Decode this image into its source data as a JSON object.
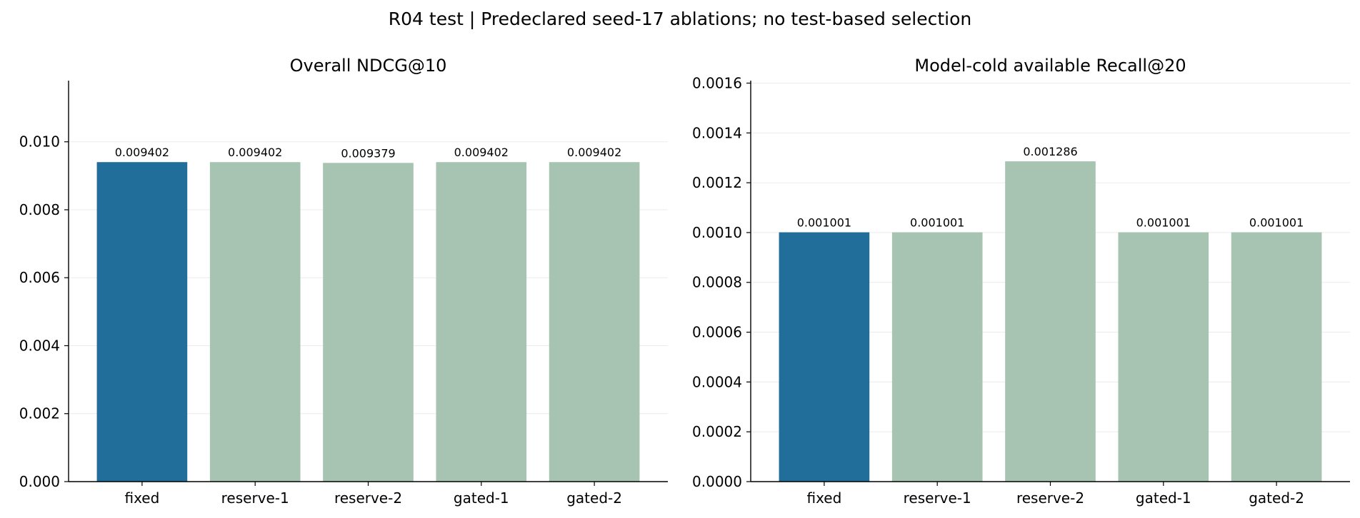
{
  "figure": {
    "suptitle": "R04 test | Predeclared seed-17 ablations; no test-based selection"
  },
  "chart_data": [
    {
      "type": "bar",
      "title": "Overall NDCG@10",
      "xlabel": "",
      "ylabel": "",
      "categories": [
        "fixed",
        "reserve-1",
        "reserve-2",
        "gated-1",
        "gated-2"
      ],
      "values": [
        0.009402,
        0.009402,
        0.009379,
        0.009402,
        0.009402
      ],
      "value_labels": [
        "0.009402",
        "0.009402",
        "0.009379",
        "0.009402",
        "0.009402"
      ],
      "ylim": [
        0,
        0.0118
      ],
      "yticks": [
        0.0,
        0.002,
        0.004,
        0.006,
        0.008,
        0.01
      ],
      "ytick_labels": [
        "0.000",
        "0.002",
        "0.004",
        "0.006",
        "0.008",
        "0.010"
      ],
      "grid": "y",
      "bar_colors": [
        "#216e9b",
        "#a7c4b2",
        "#a7c4b2",
        "#a7c4b2",
        "#a7c4b2"
      ]
    },
    {
      "type": "bar",
      "title": "Model-cold available Recall@20",
      "xlabel": "",
      "ylabel": "",
      "categories": [
        "fixed",
        "reserve-1",
        "reserve-2",
        "gated-1",
        "gated-2"
      ],
      "values": [
        0.001001,
        0.001001,
        0.001286,
        0.001001,
        0.001001
      ],
      "value_labels": [
        "0.001001",
        "0.001001",
        "0.001286",
        "0.001001",
        "0.001001"
      ],
      "ylim": [
        0,
        0.00161
      ],
      "yticks": [
        0.0,
        0.0002,
        0.0004,
        0.0006,
        0.0008,
        0.001,
        0.0012,
        0.0014,
        0.0016
      ],
      "ytick_labels": [
        "0.0000",
        "0.0002",
        "0.0004",
        "0.0006",
        "0.0008",
        "0.0010",
        "0.0012",
        "0.0014",
        "0.0016"
      ],
      "grid": "y",
      "bar_colors": [
        "#216e9b",
        "#a7c4b2",
        "#a7c4b2",
        "#a7c4b2",
        "#a7c4b2"
      ]
    }
  ]
}
